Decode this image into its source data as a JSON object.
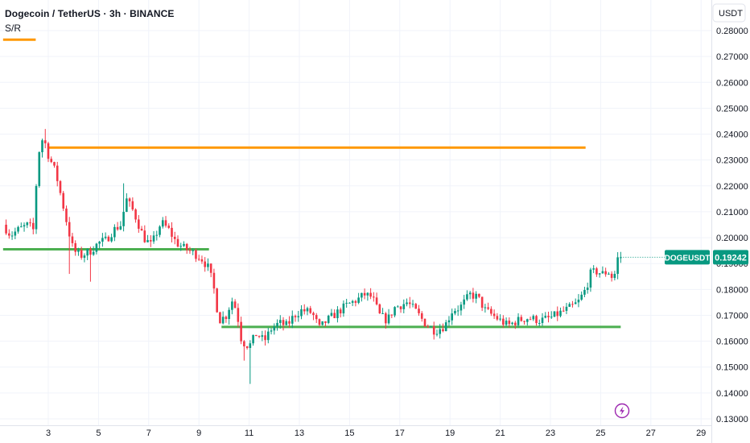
{
  "header": {
    "title": "Dogecoin / TetherUS · 3h · BINANCE",
    "indicator": "S/R"
  },
  "price_axis": {
    "unit": "USDT",
    "ticks": [
      "0.28000",
      "0.27000",
      "0.26000",
      "0.25000",
      "0.24000",
      "0.23000",
      "0.22000",
      "0.21000",
      "0.20000",
      "0.19000",
      "0.18000",
      "0.17000",
      "0.16000",
      "0.15000",
      "0.14000",
      "0.13000"
    ]
  },
  "symbol_tag": {
    "symbol": "DOGEUSDT",
    "price": "0.19242"
  },
  "colors": {
    "up": "#089981",
    "down": "#f23645",
    "resistance": "#ff9800",
    "support": "#4caf50",
    "price_line": "#089981",
    "grid": "#f0f3fa",
    "bolt": "#9c27b0"
  },
  "chart_data": {
    "type": "candlestick",
    "ylim": [
      0.13,
      0.285
    ],
    "xlim": [
      1.2,
      29.2
    ],
    "x_ticks": [
      3,
      5,
      7,
      9,
      11,
      13,
      15,
      17,
      19,
      21,
      23,
      25,
      27,
      29
    ],
    "last_price": 0.19242,
    "levels": [
      {
        "kind": "resistance",
        "price": 0.2765,
        "from": 1.2,
        "to": 2.5
      },
      {
        "kind": "resistance",
        "price": 0.2348,
        "from": 3.0,
        "to": 24.4
      },
      {
        "kind": "support",
        "price": 0.1955,
        "from": 1.2,
        "to": 9.4
      },
      {
        "kind": "support",
        "price": 0.1655,
        "from": 9.9,
        "to": 25.8
      }
    ],
    "anchors": [
      [
        1.2,
        0.205
      ],
      [
        1.5,
        0.201
      ],
      [
        1.8,
        0.203
      ],
      [
        2.2,
        0.205
      ],
      [
        2.4,
        0.203
      ],
      [
        2.6,
        0.232
      ],
      [
        2.75,
        0.238
      ],
      [
        2.9,
        0.236
      ],
      [
        3.0,
        0.232
      ],
      [
        3.3,
        0.225
      ],
      [
        3.6,
        0.212
      ],
      [
        3.8,
        0.203
      ],
      [
        4.0,
        0.195
      ],
      [
        4.3,
        0.193
      ],
      [
        4.7,
        0.195
      ],
      [
        5.0,
        0.198
      ],
      [
        5.3,
        0.199
      ],
      [
        5.6,
        0.203
      ],
      [
        5.9,
        0.205
      ],
      [
        6.1,
        0.215
      ],
      [
        6.4,
        0.21
      ],
      [
        6.8,
        0.2
      ],
      [
        7.1,
        0.197
      ],
      [
        7.5,
        0.206
      ],
      [
        7.8,
        0.203
      ],
      [
        8.1,
        0.198
      ],
      [
        8.4,
        0.196
      ],
      [
        8.8,
        0.194
      ],
      [
        9.1,
        0.192
      ],
      [
        9.4,
        0.188
      ],
      [
        9.6,
        0.18
      ],
      [
        9.8,
        0.168
      ],
      [
        10.1,
        0.17
      ],
      [
        10.3,
        0.176
      ],
      [
        10.5,
        0.172
      ],
      [
        10.7,
        0.16
      ],
      [
        11.0,
        0.158
      ],
      [
        11.3,
        0.163
      ],
      [
        11.6,
        0.16
      ],
      [
        11.9,
        0.165
      ],
      [
        12.2,
        0.167
      ],
      [
        12.5,
        0.166
      ],
      [
        12.8,
        0.17
      ],
      [
        13.1,
        0.172
      ],
      [
        13.5,
        0.171
      ],
      [
        13.8,
        0.165
      ],
      [
        14.1,
        0.168
      ],
      [
        14.5,
        0.171
      ],
      [
        14.9,
        0.174
      ],
      [
        15.3,
        0.176
      ],
      [
        15.6,
        0.178
      ],
      [
        15.9,
        0.177
      ],
      [
        16.2,
        0.17
      ],
      [
        16.5,
        0.168
      ],
      [
        16.8,
        0.173
      ],
      [
        17.3,
        0.175
      ],
      [
        17.6,
        0.172
      ],
      [
        18.0,
        0.167
      ],
      [
        18.4,
        0.164
      ],
      [
        18.8,
        0.166
      ],
      [
        19.1,
        0.172
      ],
      [
        19.4,
        0.173
      ],
      [
        19.8,
        0.178
      ],
      [
        20.1,
        0.177
      ],
      [
        20.4,
        0.172
      ],
      [
        20.7,
        0.17
      ],
      [
        21.0,
        0.168
      ],
      [
        21.3,
        0.166
      ],
      [
        21.7,
        0.168
      ],
      [
        22.1,
        0.169
      ],
      [
        22.6,
        0.168
      ],
      [
        23.0,
        0.169
      ],
      [
        23.4,
        0.171
      ],
      [
        23.8,
        0.173
      ],
      [
        24.1,
        0.175
      ],
      [
        24.4,
        0.18
      ],
      [
        24.6,
        0.186
      ],
      [
        24.8,
        0.187
      ],
      [
        25.1,
        0.186
      ],
      [
        25.3,
        0.187
      ],
      [
        25.5,
        0.184
      ],
      [
        25.65,
        0.189
      ],
      [
        25.8,
        0.1924
      ]
    ],
    "candle_step": 0.12,
    "wick_extremes": [
      {
        "x": 2.85,
        "high": 0.242
      },
      {
        "x": 3.85,
        "low": 0.186
      },
      {
        "x": 4.65,
        "low": 0.183
      },
      {
        "x": 6.0,
        "high": 0.221
      },
      {
        "x": 10.75,
        "low": 0.1525
      },
      {
        "x": 11.0,
        "low": 0.1435
      },
      {
        "x": 19.9,
        "high": 0.1805
      },
      {
        "x": 25.8,
        "high": 0.1945
      }
    ]
  }
}
